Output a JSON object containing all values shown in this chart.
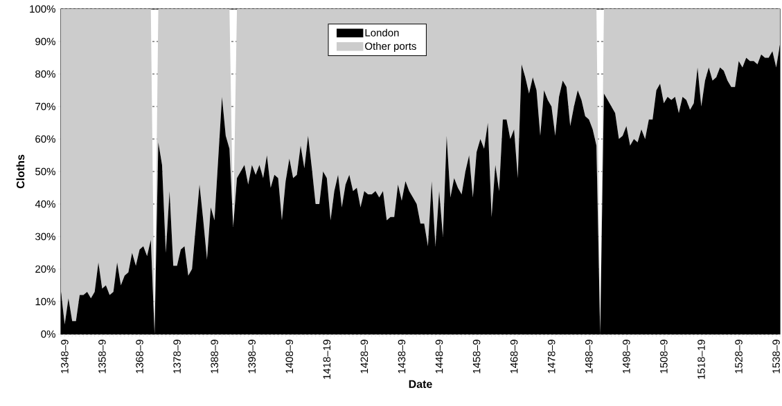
{
  "chart_data": {
    "type": "area",
    "stacked": true,
    "xlabel": "Date",
    "ylabel": "Cloths",
    "categories": [
      null,
      "1348–9",
      null,
      null,
      null,
      null,
      null,
      null,
      null,
      null,
      null,
      "1358–9",
      null,
      null,
      null,
      null,
      null,
      null,
      null,
      null,
      null,
      "1368–9",
      null,
      null,
      null,
      null,
      null,
      null,
      null,
      null,
      null,
      "1378–9",
      null,
      null,
      null,
      null,
      null,
      null,
      null,
      null,
      null,
      "1388–9",
      null,
      null,
      null,
      null,
      null,
      null,
      null,
      null,
      null,
      "1398–9",
      null,
      null,
      null,
      null,
      null,
      null,
      null,
      null,
      null,
      "1408–9",
      null,
      null,
      null,
      null,
      null,
      null,
      null,
      null,
      null,
      "1418–19",
      null,
      null,
      null,
      null,
      null,
      null,
      null,
      null,
      null,
      "1428–9",
      null,
      null,
      null,
      null,
      null,
      null,
      null,
      null,
      null,
      "1438–9",
      null,
      null,
      null,
      null,
      null,
      null,
      null,
      null,
      null,
      "1448–9",
      null,
      null,
      null,
      null,
      null,
      null,
      null,
      null,
      null,
      "1458–9",
      null,
      null,
      null,
      null,
      null,
      null,
      null,
      null,
      null,
      "1468–9",
      null,
      null,
      null,
      null,
      null,
      null,
      null,
      null,
      null,
      "1478–9",
      null,
      null,
      null,
      null,
      null,
      null,
      null,
      null,
      null,
      "1488–9",
      null,
      null,
      null,
      null,
      null,
      null,
      null,
      null,
      null,
      "1498–9",
      null,
      null,
      null,
      null,
      null,
      null,
      null,
      null,
      null,
      "1508–9",
      null,
      null,
      null,
      null,
      null,
      null,
      null,
      null,
      null,
      "1518–19",
      null,
      null,
      null,
      null,
      null,
      null,
      null,
      null,
      null,
      "1528–9",
      null,
      null,
      null,
      null,
      null,
      null,
      null,
      null,
      null,
      "1538–9",
      null
    ],
    "series": [
      {
        "name": "London",
        "color": "#000000",
        "values": [
          13,
          3,
          11,
          4,
          4,
          12,
          12,
          13,
          11,
          13,
          22,
          14,
          15,
          12,
          13,
          22,
          15,
          18,
          19,
          25,
          21,
          26,
          27,
          24,
          29,
          0,
          59,
          52,
          25,
          44,
          21,
          21,
          26,
          27,
          18,
          20,
          33,
          46,
          35,
          23,
          39,
          35,
          54,
          73,
          61,
          57,
          33,
          48,
          50,
          52,
          46,
          52,
          49,
          52,
          48,
          55,
          45,
          49,
          48,
          35,
          47,
          54,
          48,
          49,
          58,
          51,
          61,
          51,
          40,
          40,
          50,
          48,
          35,
          44,
          49,
          39,
          46,
          49,
          44,
          45,
          39,
          44,
          43,
          43,
          44,
          42,
          44,
          35,
          36,
          36,
          46,
          41,
          47,
          44,
          42,
          40,
          34,
          34,
          27,
          47,
          27,
          44,
          30,
          61,
          42,
          48,
          45,
          43,
          50,
          55,
          42,
          56,
          60,
          57,
          65,
          36,
          52,
          44,
          66,
          66,
          60,
          63,
          48,
          83,
          79,
          74,
          79,
          75,
          61,
          75,
          72,
          70,
          61,
          73,
          78,
          76,
          64,
          70,
          75,
          72,
          67,
          66,
          63,
          58,
          0,
          74,
          72,
          70,
          68,
          60,
          61,
          64,
          58,
          60,
          59,
          63,
          60,
          66,
          66,
          75,
          77,
          71,
          73,
          72,
          73,
          68,
          73,
          72,
          69,
          71,
          82,
          70,
          78,
          82,
          78,
          79,
          82,
          81,
          78,
          76,
          76,
          84,
          82,
          85,
          84,
          84,
          83,
          86,
          85,
          85,
          87,
          82,
          89
        ]
      },
      {
        "name": "Other ports",
        "color": "#cccccc",
        "values": [
          87,
          97,
          89,
          96,
          96,
          88,
          88,
          87,
          89,
          87,
          78,
          86,
          85,
          88,
          87,
          78,
          85,
          82,
          81,
          75,
          79,
          74,
          73,
          76,
          71,
          0,
          41,
          48,
          75,
          56,
          79,
          79,
          74,
          73,
          82,
          80,
          67,
          54,
          65,
          77,
          61,
          65,
          46,
          27,
          39,
          43,
          0,
          52,
          50,
          48,
          54,
          48,
          51,
          48,
          52,
          45,
          55,
          51,
          52,
          65,
          53,
          46,
          52,
          51,
          42,
          49,
          39,
          49,
          60,
          60,
          50,
          52,
          65,
          56,
          51,
          61,
          54,
          51,
          56,
          55,
          61,
          56,
          57,
          57,
          56,
          58,
          56,
          65,
          64,
          64,
          54,
          59,
          53,
          56,
          58,
          60,
          66,
          66,
          73,
          53,
          73,
          56,
          70,
          39,
          58,
          52,
          55,
          57,
          50,
          45,
          58,
          44,
          40,
          43,
          35,
          64,
          48,
          56,
          34,
          34,
          40,
          37,
          52,
          17,
          21,
          26,
          21,
          25,
          39,
          25,
          28,
          30,
          39,
          27,
          22,
          24,
          36,
          30,
          25,
          28,
          33,
          34,
          37,
          42,
          0,
          26,
          28,
          30,
          32,
          40,
          39,
          36,
          42,
          40,
          41,
          37,
          40,
          34,
          34,
          25,
          23,
          29,
          27,
          28,
          27,
          32,
          27,
          28,
          31,
          29,
          18,
          30,
          22,
          18,
          22,
          21,
          18,
          19,
          22,
          24,
          24,
          16,
          18,
          15,
          16,
          16,
          17,
          14,
          15,
          15,
          13,
          18,
          11
        ]
      }
    ],
    "ylim": [
      0,
      100
    ],
    "yticks": [
      {
        "value": 0,
        "label": "0%"
      },
      {
        "value": 10,
        "label": "10%"
      },
      {
        "value": 20,
        "label": "20%"
      },
      {
        "value": 30,
        "label": "30%"
      },
      {
        "value": 40,
        "label": "40%"
      },
      {
        "value": 50,
        "label": "50%"
      },
      {
        "value": 60,
        "label": "60%"
      },
      {
        "value": 70,
        "label": "70%"
      },
      {
        "value": 80,
        "label": "80%"
      },
      {
        "value": 90,
        "label": "90%"
      },
      {
        "value": 100,
        "label": "100%"
      }
    ],
    "grid": "y",
    "legend": "top"
  }
}
